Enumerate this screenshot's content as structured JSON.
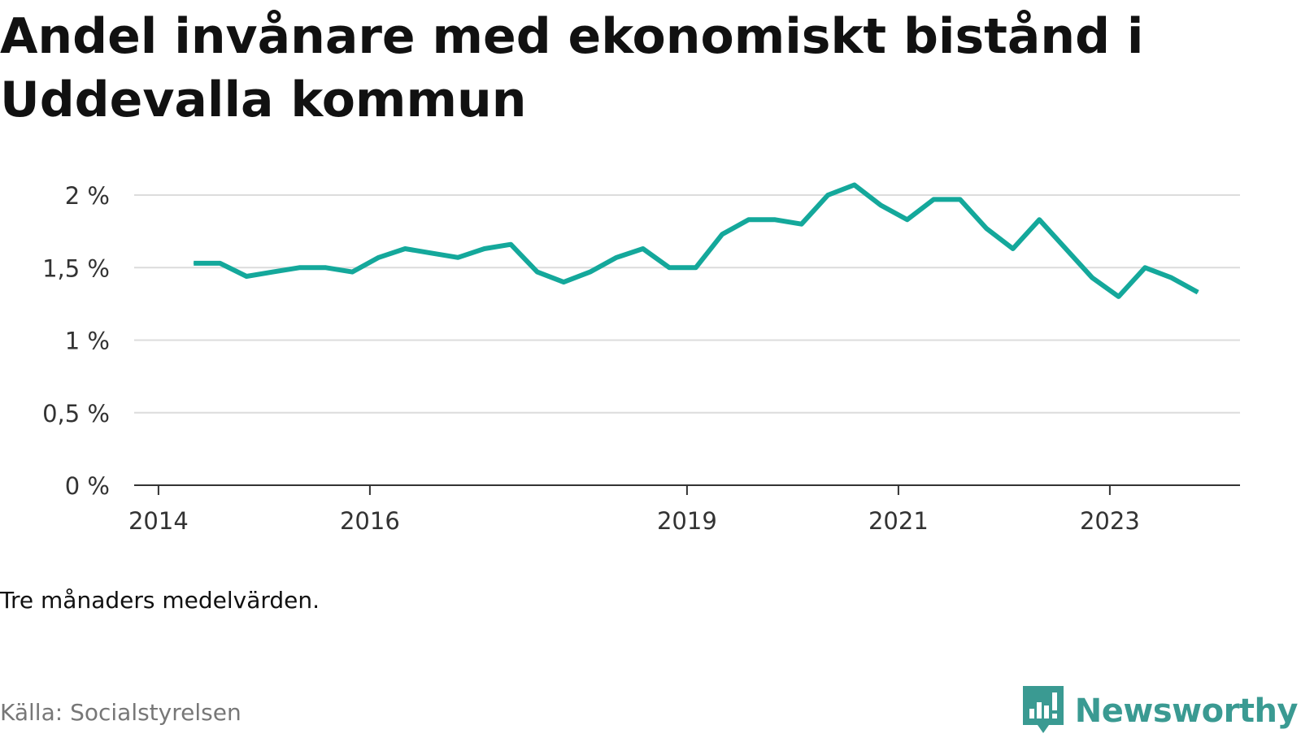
{
  "chart_data": {
    "type": "line",
    "title": "Andel invånare med ekonomiskt bistånd i Uddevalla kommun",
    "subtitle": "",
    "xlabel": "",
    "ylabel": "",
    "ylim": [
      0,
      2
    ],
    "y_ticks": [
      0,
      0.5,
      1,
      1.5,
      2
    ],
    "y_tick_labels": [
      "0 %",
      "0,5 %",
      "1 %",
      "1,5 %",
      "2 %"
    ],
    "x_ticks": [
      "2014",
      "2016",
      "2019",
      "2021",
      "2023"
    ],
    "grid": "horizontal",
    "color": "#14a89b",
    "series": [
      {
        "x": [
          "2014-05",
          "2014-08",
          "2014-11",
          "2015-02",
          "2015-05",
          "2015-08",
          "2015-11",
          "2016-02",
          "2016-05",
          "2016-08",
          "2016-11",
          "2017-02",
          "2017-05",
          "2017-08",
          "2017-11",
          "2018-02",
          "2018-05",
          "2018-08",
          "2018-11",
          "2019-02",
          "2019-05",
          "2019-08",
          "2019-11",
          "2020-02",
          "2020-05",
          "2020-08",
          "2020-11",
          "2021-02",
          "2021-05",
          "2021-08",
          "2021-11",
          "2022-02",
          "2022-05",
          "2022-08",
          "2022-11",
          "2023-02",
          "2023-05",
          "2023-08",
          "2023-11"
        ],
        "values": [
          1.53,
          1.53,
          1.44,
          1.47,
          1.5,
          1.5,
          1.47,
          1.57,
          1.63,
          1.6,
          1.57,
          1.63,
          1.66,
          1.47,
          1.4,
          1.47,
          1.57,
          1.63,
          1.5,
          1.5,
          1.73,
          1.83,
          1.83,
          1.8,
          2.0,
          2.07,
          1.93,
          1.83,
          1.97,
          1.97,
          1.77,
          1.63,
          1.83,
          1.63,
          1.43,
          1.3,
          1.5,
          1.43,
          1.33
        ]
      }
    ]
  },
  "footer": {
    "note": "Tre månaders medelvärden.",
    "source": "Källa: Socialstyrelsen",
    "brand": "Newsworthy",
    "brand_icon": "newsworthy-logo-icon",
    "brand_color": "#3a9a92"
  }
}
